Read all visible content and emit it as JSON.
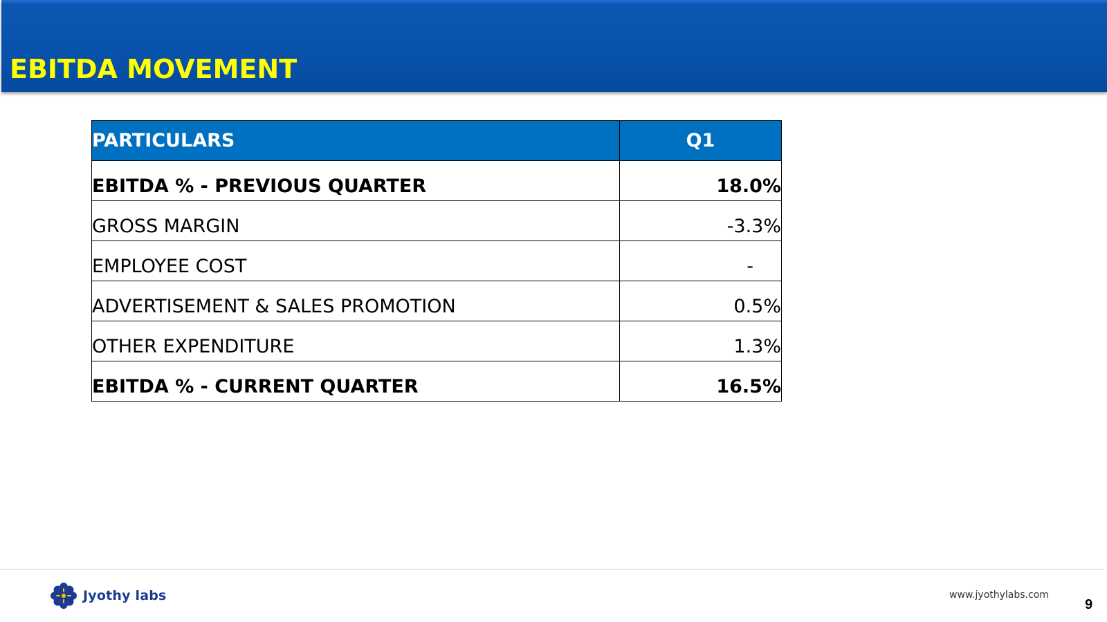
{
  "slide": {
    "title": "EBITDA MOVEMENT",
    "page_number": "9"
  },
  "table": {
    "headers": [
      "PARTICULARS",
      "Q1"
    ],
    "rows": [
      {
        "label": "EBITDA % - PREVIOUS QUARTER",
        "value": "18.0%",
        "bold": true
      },
      {
        "label": "GROSS MARGIN",
        "value": "-3.3%",
        "bold": false
      },
      {
        "label": "EMPLOYEE COST",
        "value": "-",
        "bold": false
      },
      {
        "label": "ADVERTISEMENT & SALES PROMOTION",
        "value": "0.5%",
        "bold": false
      },
      {
        "label": "OTHER EXPENDITURE",
        "value": "1.3%",
        "bold": false
      },
      {
        "label": "EBITDA % - CURRENT QUARTER",
        "value": "16.5%",
        "bold": true
      }
    ]
  },
  "footer": {
    "logo_text": "Jyothy labs",
    "website": "www.jyothylabs.com"
  },
  "colors": {
    "title_bar": "#0851aa",
    "title_text": "#ffff00",
    "table_header": "#0070c0",
    "logo_blue": "#1b3a94",
    "logo_yellow": "#f5c400"
  },
  "icons": {
    "logo": "jyothy-labs-flower-logo-icon"
  }
}
